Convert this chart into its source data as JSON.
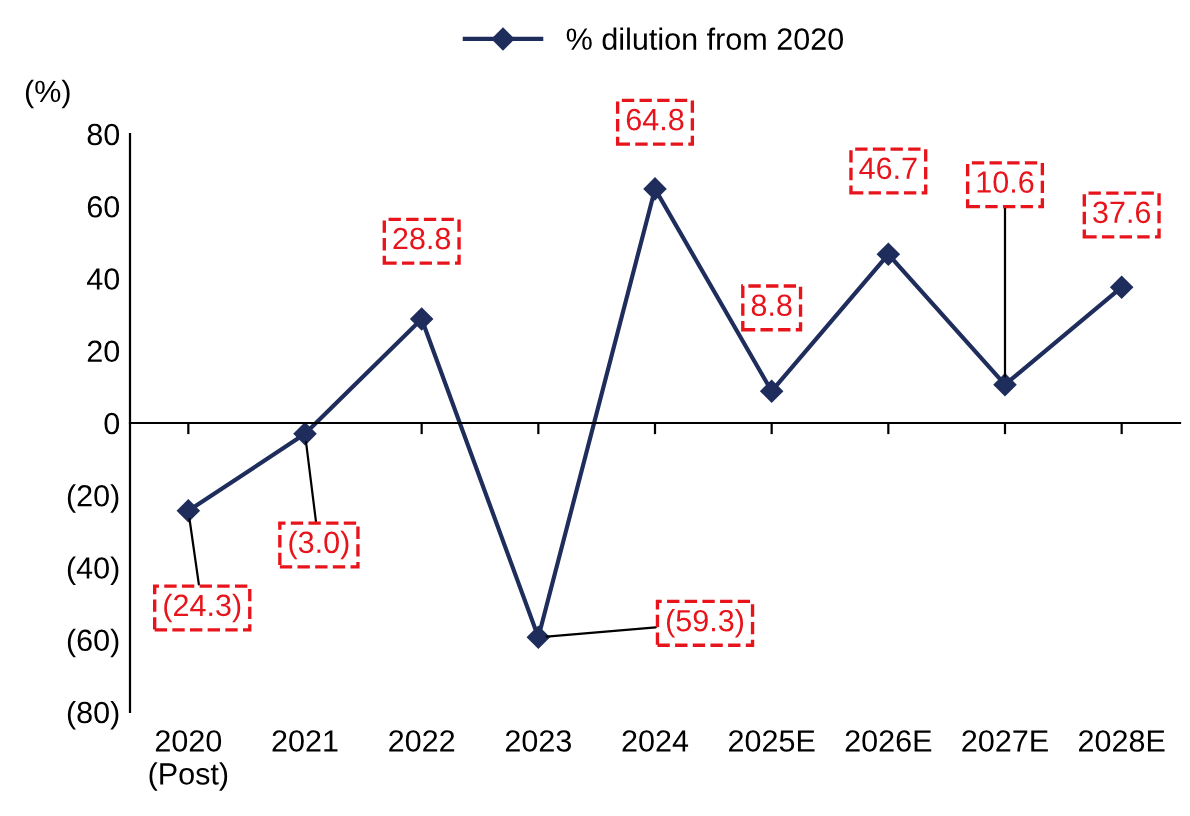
{
  "chart_data": {
    "type": "line",
    "ylabel": "(%)",
    "categories": [
      "2020\n(Post)",
      "2021",
      "2022",
      "2023",
      "2024",
      "2025E",
      "2026E",
      "2027E",
      "2028E"
    ],
    "series": [
      {
        "name": "% dilution from 2020",
        "color": "#1f2d5c",
        "values": [
          -24.3,
          -3.0,
          28.8,
          -59.3,
          64.8,
          8.8,
          46.7,
          10.6,
          37.6
        ],
        "value_labels": [
          "(24.3)",
          "(3.0)",
          "28.8",
          "(59.3)",
          "64.8",
          "8.8",
          "46.7",
          "10.6",
          "37.6"
        ]
      }
    ],
    "ylim": [
      -80,
      80
    ],
    "yticks": [
      {
        "value": -80,
        "label": "(80)"
      },
      {
        "value": -60,
        "label": "(60)"
      },
      {
        "value": -40,
        "label": "(40)"
      },
      {
        "value": -20,
        "label": "(20)"
      },
      0,
      20,
      40,
      60,
      80
    ],
    "marker": "diamond",
    "line_style": "solid",
    "legend": "top"
  }
}
